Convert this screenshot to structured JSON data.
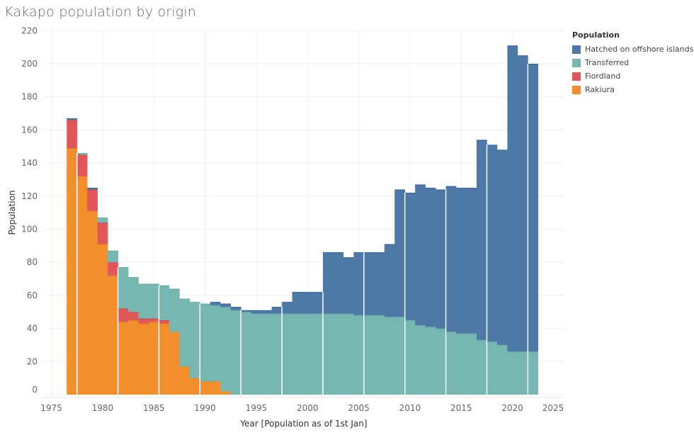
{
  "chart_data": {
    "type": "bar",
    "stacked": true,
    "title": "Kakapo population by origin",
    "xlabel": "Year [Population as of 1st Jan]",
    "ylabel": "Population",
    "xlim": [
      1973,
      2026
    ],
    "ylim": [
      0,
      220
    ],
    "xticks": [
      "1975",
      "1980",
      "1985",
      "1990",
      "1995",
      "2000",
      "2005",
      "2010",
      "2015",
      "2020",
      "2025"
    ],
    "yticks": [
      "0",
      "20",
      "40",
      "60",
      "80",
      "100",
      "120",
      "140",
      "160",
      "180",
      "200",
      "220"
    ],
    "grid": true,
    "legend": {
      "title": "Population",
      "position": "right"
    },
    "x": [
      1977,
      1978,
      1979,
      1980,
      1981,
      1982,
      1983,
      1984,
      1985,
      1986,
      1987,
      1988,
      1989,
      1990,
      1991,
      1992,
      1993,
      1994,
      1995,
      1996,
      1997,
      1998,
      1999,
      2000,
      2001,
      2002,
      2003,
      2004,
      2005,
      2006,
      2007,
      2008,
      2009,
      2010,
      2011,
      2012,
      2013,
      2014,
      2015,
      2016,
      2017,
      2018,
      2019,
      2020,
      2021,
      2022
    ],
    "series": [
      {
        "name": "Rakiura",
        "color": "#f28e2b",
        "values": [
          149,
          132,
          111,
          91,
          72,
          44,
          45,
          43,
          44,
          43,
          38,
          17,
          10,
          8,
          8,
          2,
          0,
          0,
          0,
          0,
          0,
          0,
          0,
          0,
          0,
          0,
          0,
          0,
          0,
          0,
          0,
          0,
          0,
          0,
          0,
          0,
          0,
          0,
          0,
          0,
          0,
          0,
          0,
          0,
          0,
          0
        ]
      },
      {
        "name": "Fiordland",
        "color": "#e15759",
        "values": [
          17,
          13,
          13,
          13,
          8,
          8,
          5,
          3,
          2,
          2,
          0,
          0,
          0,
          0,
          0,
          0,
          0,
          0,
          0,
          0,
          0,
          0,
          0,
          0,
          0,
          0,
          0,
          0,
          0,
          0,
          0,
          0,
          0,
          0,
          0,
          0,
          0,
          0,
          0,
          0,
          0,
          0,
          0,
          0,
          0,
          0
        ]
      },
      {
        "name": "Transferred",
        "color": "#76b7b2",
        "values": [
          0,
          1,
          0,
          3,
          7,
          25,
          21,
          21,
          21,
          21,
          26,
          41,
          46,
          47,
          46,
          51,
          51,
          50,
          49,
          49,
          49,
          49,
          49,
          49,
          49,
          49,
          49,
          49,
          48,
          48,
          48,
          47,
          47,
          45,
          42,
          41,
          40,
          38,
          37,
          37,
          33,
          32,
          30,
          26,
          26,
          26
        ]
      },
      {
        "name": "Hatched on offshore islands",
        "color": "#4e79a7",
        "values": [
          1,
          0,
          1,
          0,
          0,
          0,
          0,
          0,
          0,
          0,
          0,
          0,
          0,
          0,
          2,
          2,
          2,
          1,
          2,
          2,
          4,
          7,
          13,
          13,
          13,
          37,
          37,
          34,
          38,
          38,
          38,
          44,
          77,
          77,
          85,
          84,
          84,
          88,
          88,
          88,
          121,
          119,
          118,
          185,
          179,
          174
        ]
      }
    ]
  }
}
